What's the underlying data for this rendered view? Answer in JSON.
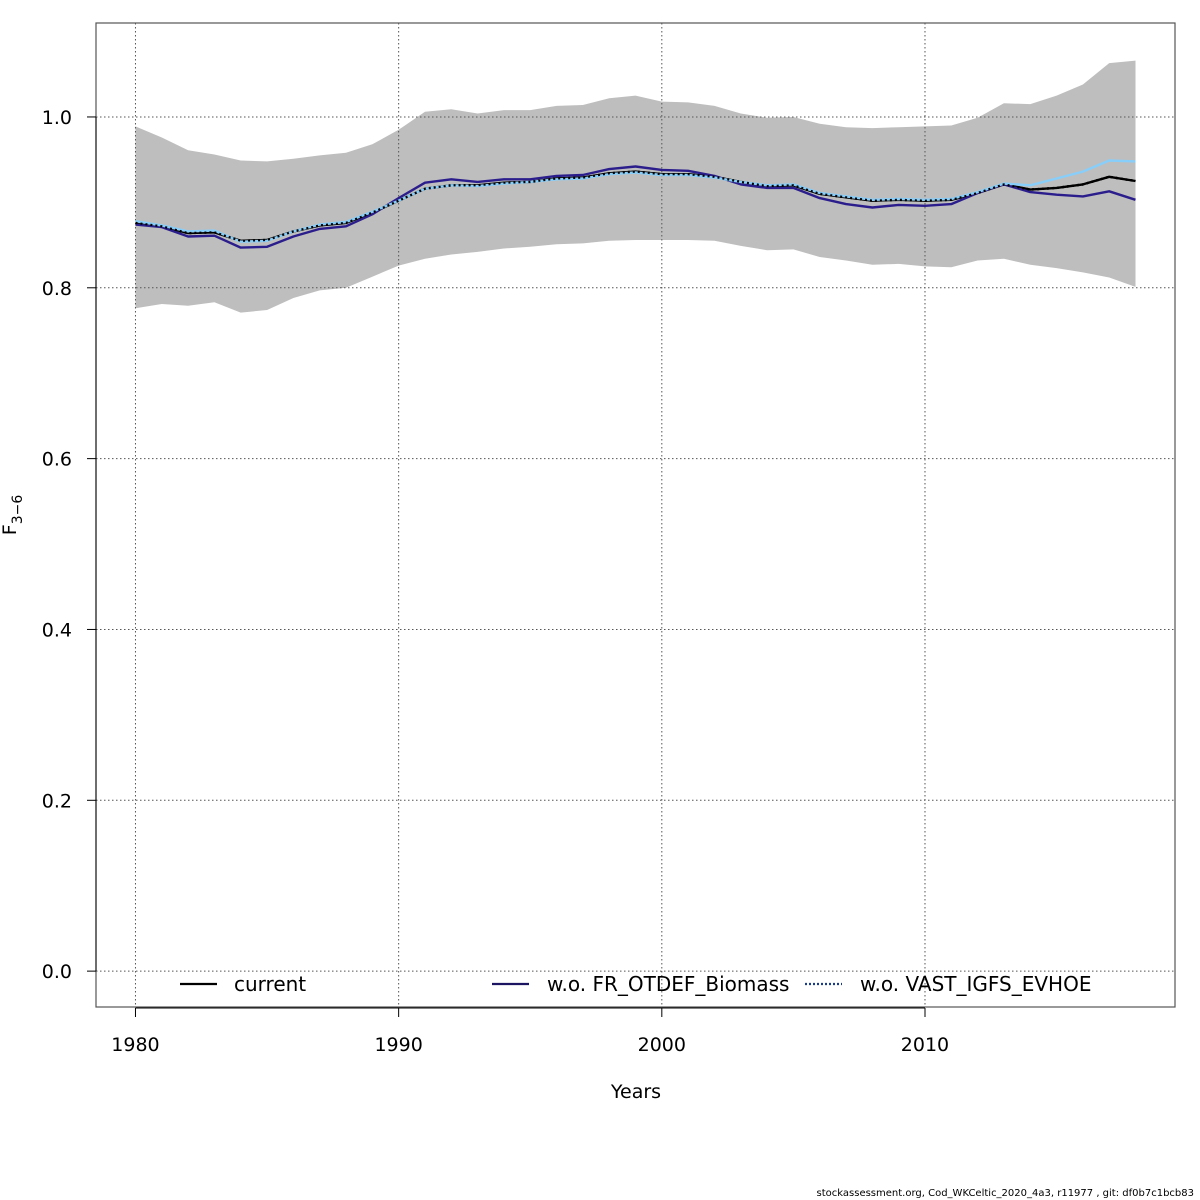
{
  "chart_data": {
    "type": "line",
    "xlabel": "Years",
    "ylabel_main": "F",
    "ylabel_sub": "3−6",
    "xlim": [
      1978.5,
      2019.5
    ],
    "ylim": [
      -0.042,
      1.11
    ],
    "x_ticks": [
      1980,
      1990,
      2000,
      2010
    ],
    "y_ticks": [
      "0.0",
      "0.2",
      "0.4",
      "0.6",
      "0.8",
      "1.0"
    ],
    "grid": true,
    "legend_position": "bottom",
    "band": {
      "x": [
        1980,
        1981,
        1982,
        1983,
        1984,
        1985,
        1986,
        1987,
        1988,
        1989,
        1990,
        1991,
        1992,
        1993,
        1994,
        1995,
        1996,
        1997,
        1998,
        1999,
        2000,
        2001,
        2002,
        2003,
        2004,
        2005,
        2006,
        2007,
        2008,
        2009,
        2010,
        2011,
        2012,
        2013,
        2014,
        2015,
        2016,
        2017,
        2018
      ],
      "upper": [
        0.989,
        0.976,
        0.961,
        0.956,
        0.949,
        0.948,
        0.951,
        0.955,
        0.958,
        0.968,
        0.985,
        1.006,
        1.009,
        1.004,
        1.008,
        1.008,
        1.013,
        1.014,
        1.022,
        1.025,
        1.018,
        1.017,
        1.013,
        1.004,
        0.999,
        1.0,
        0.992,
        0.988,
        0.987,
        0.988,
        0.989,
        0.99,
        0.999,
        1.016,
        1.015,
        1.025,
        1.038,
        1.063,
        1.066
      ],
      "lower": [
        0.776,
        0.781,
        0.779,
        0.783,
        0.771,
        0.774,
        0.788,
        0.797,
        0.8,
        0.813,
        0.826,
        0.834,
        0.839,
        0.842,
        0.846,
        0.848,
        0.851,
        0.852,
        0.855,
        0.856,
        0.856,
        0.856,
        0.855,
        0.849,
        0.844,
        0.845,
        0.836,
        0.832,
        0.827,
        0.828,
        0.825,
        0.824,
        0.832,
        0.834,
        0.827,
        0.823,
        0.818,
        0.812,
        0.801
      ],
      "color": "#bebebe"
    },
    "series": [
      {
        "name": "current",
        "color": "#000000",
        "legend_color": "#000000",
        "style": "solid",
        "x": [
          1980,
          1981,
          1982,
          1983,
          1984,
          1985,
          1986,
          1987,
          1988,
          1989,
          1990,
          1991,
          1992,
          1993,
          1994,
          1995,
          1996,
          1997,
          1998,
          1999,
          2000,
          2001,
          2002,
          2003,
          2004,
          2005,
          2006,
          2007,
          2008,
          2009,
          2010,
          2011,
          2012,
          2013,
          2014,
          2015,
          2016,
          2017,
          2018
        ],
        "y": [
          0.876,
          0.872,
          0.864,
          0.865,
          0.855,
          0.856,
          0.866,
          0.873,
          0.876,
          0.888,
          0.902,
          0.916,
          0.92,
          0.92,
          0.923,
          0.924,
          0.928,
          0.929,
          0.934,
          0.936,
          0.933,
          0.933,
          0.93,
          0.924,
          0.919,
          0.92,
          0.91,
          0.906,
          0.902,
          0.903,
          0.902,
          0.903,
          0.911,
          0.921,
          0.915,
          0.917,
          0.921,
          0.93,
          0.925
        ]
      },
      {
        "name": "w.o. FR_OTDEF_Biomass",
        "color": "#2b1e8c",
        "legend_color": "#1c1562",
        "style": "solid",
        "x": [
          1980,
          1981,
          1982,
          1983,
          1984,
          1985,
          1986,
          1987,
          1988,
          1989,
          1990,
          1991,
          1992,
          1993,
          1994,
          1995,
          1996,
          1997,
          1998,
          1999,
          2000,
          2001,
          2002,
          2003,
          2004,
          2005,
          2006,
          2007,
          2008,
          2009,
          2010,
          2011,
          2012,
          2013,
          2014,
          2015,
          2016,
          2017,
          2018
        ],
        "y": [
          0.874,
          0.871,
          0.86,
          0.861,
          0.847,
          0.848,
          0.86,
          0.869,
          0.872,
          0.886,
          0.905,
          0.923,
          0.927,
          0.924,
          0.927,
          0.927,
          0.931,
          0.932,
          0.939,
          0.942,
          0.938,
          0.937,
          0.931,
          0.921,
          0.917,
          0.917,
          0.905,
          0.898,
          0.894,
          0.897,
          0.896,
          0.898,
          0.911,
          0.921,
          0.912,
          0.909,
          0.907,
          0.913,
          0.903
        ]
      },
      {
        "name": "w.o. VAST_IGFS_EVHOE",
        "color": "#87cefa",
        "legend_color": "#1a3a8c",
        "style": "dotted-legend",
        "x": [
          1980,
          1981,
          1982,
          1983,
          1984,
          1985,
          1986,
          1987,
          1988,
          1989,
          1990,
          1991,
          1992,
          1993,
          1994,
          1995,
          1996,
          1997,
          1998,
          1999,
          2000,
          2001,
          2002,
          2003,
          2004,
          2005,
          2006,
          2007,
          2008,
          2009,
          2010,
          2011,
          2012,
          2013,
          2014,
          2015,
          2016,
          2017,
          2018
        ],
        "y": [
          0.878,
          0.873,
          0.866,
          0.867,
          0.854,
          0.855,
          0.866,
          0.874,
          0.877,
          0.889,
          0.902,
          0.916,
          0.92,
          0.919,
          0.922,
          0.924,
          0.927,
          0.928,
          0.933,
          0.935,
          0.932,
          0.932,
          0.929,
          0.924,
          0.92,
          0.921,
          0.911,
          0.907,
          0.903,
          0.904,
          0.903,
          0.904,
          0.912,
          0.922,
          0.92,
          0.928,
          0.936,
          0.949,
          0.948
        ]
      }
    ]
  },
  "footer_text": "stockassessment.org, Cod_WKCeltic_2020_4a3, r11977 , git: df0b7c1bcb83"
}
